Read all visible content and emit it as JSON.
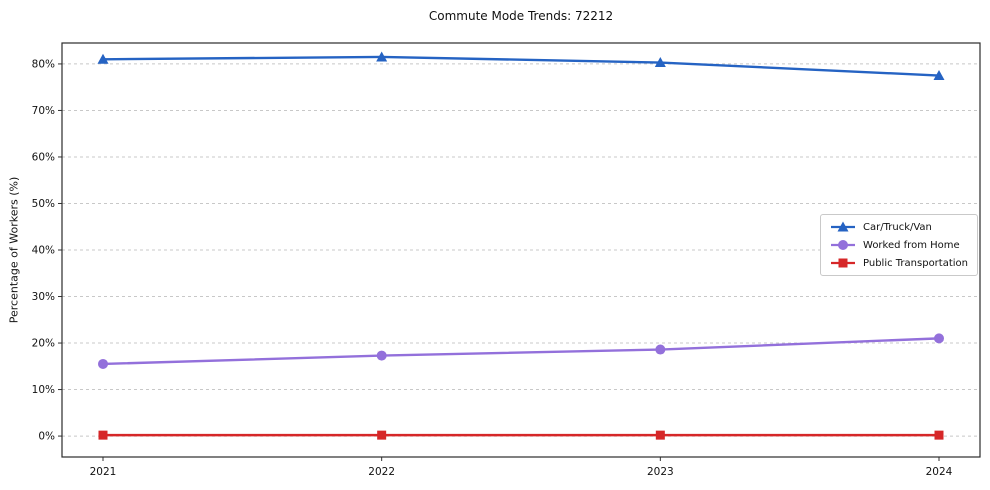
{
  "chart_data": {
    "type": "line",
    "title": "Commute Mode Trends: 72212",
    "xlabel": "",
    "ylabel": "Percentage of Workers (%)",
    "categories": [
      "2021",
      "2022",
      "2023",
      "2024"
    ],
    "series": [
      {
        "name": "Car/Truck/Van",
        "color": "#2563c3",
        "marker": "triangle",
        "values": [
          81.0,
          81.5,
          80.3,
          77.5
        ]
      },
      {
        "name": "Worked from Home",
        "color": "#9370db",
        "marker": "circle",
        "values": [
          15.5,
          17.3,
          18.6,
          21.0
        ]
      },
      {
        "name": "Public Transportation",
        "color": "#d62728",
        "marker": "square",
        "values": [
          0.2,
          0.2,
          0.2,
          0.2
        ]
      }
    ],
    "yticks": [
      0,
      10,
      20,
      30,
      40,
      50,
      60,
      70,
      80
    ],
    "ytick_suffix": "%",
    "ylim": [
      -4.5,
      84.5
    ],
    "grid": true,
    "legend_position": "right-middle"
  }
}
